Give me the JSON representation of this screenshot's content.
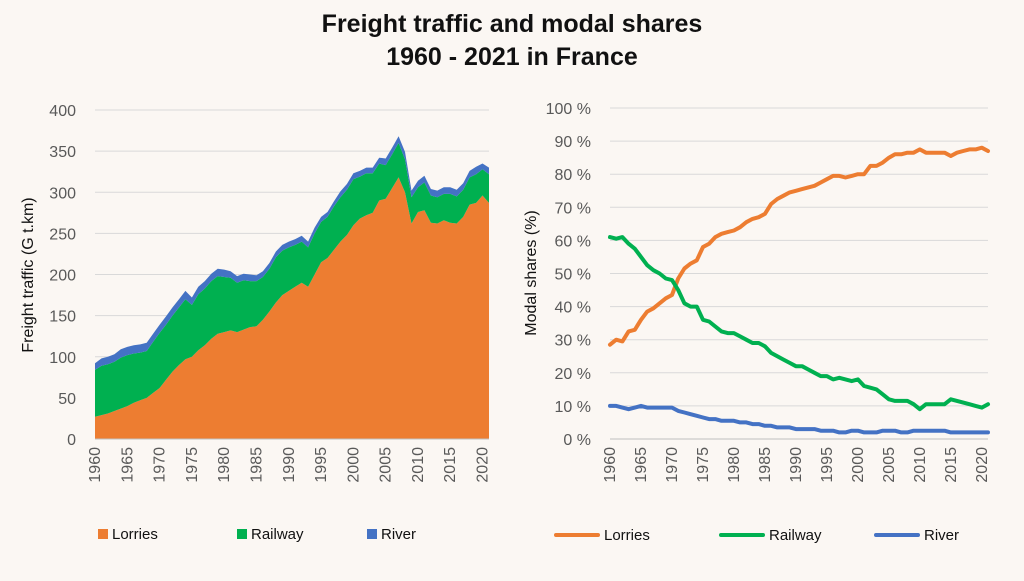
{
  "page": {
    "title_line1": "Freight traffic and modal shares",
    "title_line2": "1960 - 2021 in France"
  },
  "colors": {
    "lorries": "#ed7d31",
    "railway": "#00b050",
    "river": "#4472c4",
    "grid": "#d9d9d9"
  },
  "chart_data": [
    {
      "type": "area",
      "stacked": true,
      "ylabel": "Freight traffic (G t.km)",
      "ylim": [
        0,
        400
      ],
      "yticks": [
        "0",
        "50",
        "100",
        "150",
        "200",
        "250",
        "300",
        "350",
        "400"
      ],
      "xlim": [
        1960,
        2021
      ],
      "xticks": [
        "1960",
        "1965",
        "1970",
        "1975",
        "1980",
        "1985",
        "1990",
        "1995",
        "2000",
        "2005",
        "2010",
        "2015",
        "2020"
      ],
      "grid": true,
      "legend_position": "bottom",
      "x": [
        1960,
        1961,
        1962,
        1963,
        1964,
        1965,
        1966,
        1967,
        1968,
        1969,
        1970,
        1971,
        1972,
        1973,
        1974,
        1975,
        1976,
        1977,
        1978,
        1979,
        1980,
        1981,
        1982,
        1983,
        1984,
        1985,
        1986,
        1987,
        1988,
        1989,
        1990,
        1991,
        1992,
        1993,
        1994,
        1995,
        1996,
        1997,
        1998,
        1999,
        2000,
        2001,
        2002,
        2003,
        2004,
        2005,
        2006,
        2007,
        2008,
        2009,
        2010,
        2011,
        2012,
        2013,
        2014,
        2015,
        2016,
        2017,
        2018,
        2019,
        2020,
        2021
      ],
      "series": [
        {
          "name": "Lorries",
          "values": [
            27,
            29,
            31,
            34,
            37,
            40,
            44,
            47,
            50,
            56,
            62,
            72,
            82,
            90,
            97,
            100,
            108,
            114,
            122,
            128,
            130,
            132,
            130,
            133,
            136,
            137,
            145,
            155,
            166,
            175,
            180,
            185,
            190,
            185,
            200,
            215,
            220,
            230,
            240,
            248,
            260,
            268,
            272,
            275,
            290,
            292,
            305,
            318,
            300,
            262,
            276,
            278,
            263,
            262,
            266,
            263,
            262,
            270,
            285,
            287,
            296,
            287
          ]
        },
        {
          "name": "Railway",
          "values": [
            57,
            60,
            60,
            60,
            62,
            62,
            60,
            58,
            57,
            62,
            67,
            67,
            68,
            70,
            73,
            63,
            68,
            69,
            70,
            70,
            67,
            64,
            60,
            60,
            56,
            55,
            52,
            52,
            55,
            54,
            53,
            51,
            50,
            48,
            50,
            49,
            50,
            53,
            54,
            55,
            56,
            51,
            51,
            48,
            45,
            41,
            41,
            42,
            40,
            32,
            30,
            34,
            33,
            32,
            32,
            35,
            33,
            33,
            33,
            35,
            32,
            35
          ]
        },
        {
          "name": "River",
          "values": [
            8,
            9,
            9,
            9,
            10,
            10,
            10,
            10,
            10,
            10,
            10,
            10,
            10,
            10,
            10,
            9,
            9,
            9,
            9,
            9,
            9,
            8,
            8,
            8,
            8,
            7,
            7,
            7,
            7,
            7,
            7,
            7,
            7,
            7,
            7,
            6,
            6,
            6,
            7,
            7,
            7,
            7,
            7,
            7,
            7,
            8,
            8,
            8,
            9,
            8,
            8,
            8,
            8,
            8,
            8,
            8,
            8,
            8,
            8,
            9,
            7,
            8
          ]
        }
      ]
    },
    {
      "type": "line",
      "ylabel": "Modal shares (%)",
      "ylim": [
        0,
        100
      ],
      "yticks": [
        "0 %",
        "10 %",
        "20 %",
        "30 %",
        "40 %",
        "50 %",
        "60 %",
        "70 %",
        "80 %",
        "90 %",
        "100 %"
      ],
      "xlim": [
        1960,
        2021
      ],
      "xticks": [
        "1960",
        "1965",
        "1970",
        "1975",
        "1980",
        "1985",
        "1990",
        "1995",
        "2000",
        "2005",
        "2010",
        "2015",
        "2020"
      ],
      "grid": true,
      "legend_position": "bottom",
      "x": [
        1960,
        1961,
        1962,
        1963,
        1964,
        1965,
        1966,
        1967,
        1968,
        1969,
        1970,
        1971,
        1972,
        1973,
        1974,
        1975,
        1976,
        1977,
        1978,
        1979,
        1980,
        1981,
        1982,
        1983,
        1984,
        1985,
        1986,
        1987,
        1988,
        1989,
        1990,
        1991,
        1992,
        1993,
        1994,
        1995,
        1996,
        1997,
        1998,
        1999,
        2000,
        2001,
        2002,
        2003,
        2004,
        2005,
        2006,
        2007,
        2008,
        2009,
        2010,
        2011,
        2012,
        2013,
        2014,
        2015,
        2016,
        2017,
        2018,
        2019,
        2020,
        2021
      ],
      "series": [
        {
          "name": "Lorries",
          "values": [
            28.5,
            30,
            29.5,
            32.5,
            33,
            36,
            38.5,
            39.5,
            41,
            42.5,
            43.5,
            48.5,
            51.5,
            53,
            54,
            58,
            59,
            61,
            62,
            62.5,
            63,
            64,
            65.5,
            66.5,
            67,
            68,
            71,
            72.5,
            73.5,
            74.5,
            75,
            75.5,
            76,
            76.5,
            77.5,
            78.5,
            79.5,
            79.5,
            79,
            79.5,
            80,
            80,
            82.5,
            82.5,
            83.5,
            85,
            86,
            86,
            86.5,
            86.5,
            87.5,
            86.5,
            86.5,
            86.5,
            86.5,
            85.5,
            86.5,
            87,
            87.5,
            87.5,
            88,
            87
          ]
        },
        {
          "name": "Railway",
          "values": [
            61,
            60.5,
            61,
            59,
            57.5,
            55,
            52.5,
            51,
            50,
            48.5,
            48,
            45,
            41,
            40,
            40,
            36,
            35.5,
            34,
            32.5,
            32,
            32,
            31,
            30,
            29,
            29,
            28,
            26,
            25,
            24,
            23,
            22,
            22,
            21,
            20,
            19,
            19,
            18,
            18.5,
            18,
            17.5,
            18,
            16,
            15.5,
            15,
            13.5,
            12,
            11.5,
            11.5,
            11.5,
            10.5,
            9,
            10.5,
            10.5,
            10.5,
            10.5,
            12,
            11.5,
            11,
            10.5,
            10,
            9.5,
            10.5
          ]
        },
        {
          "name": "River",
          "values": [
            10,
            10,
            9.5,
            9,
            9.5,
            10,
            9.5,
            9.5,
            9.5,
            9.5,
            9.5,
            8.5,
            8,
            7.5,
            7,
            6.5,
            6,
            6,
            5.5,
            5.5,
            5.5,
            5,
            5,
            4.5,
            4.5,
            4,
            4,
            3.5,
            3.5,
            3.5,
            3,
            3,
            3,
            3,
            2.5,
            2.5,
            2.5,
            2,
            2,
            2.5,
            2.5,
            2,
            2,
            2,
            2.5,
            2.5,
            2.5,
            2,
            2,
            2.5,
            2.5,
            2.5,
            2.5,
            2.5,
            2.5,
            2,
            2,
            2,
            2,
            2,
            2,
            2
          ]
        }
      ]
    }
  ]
}
